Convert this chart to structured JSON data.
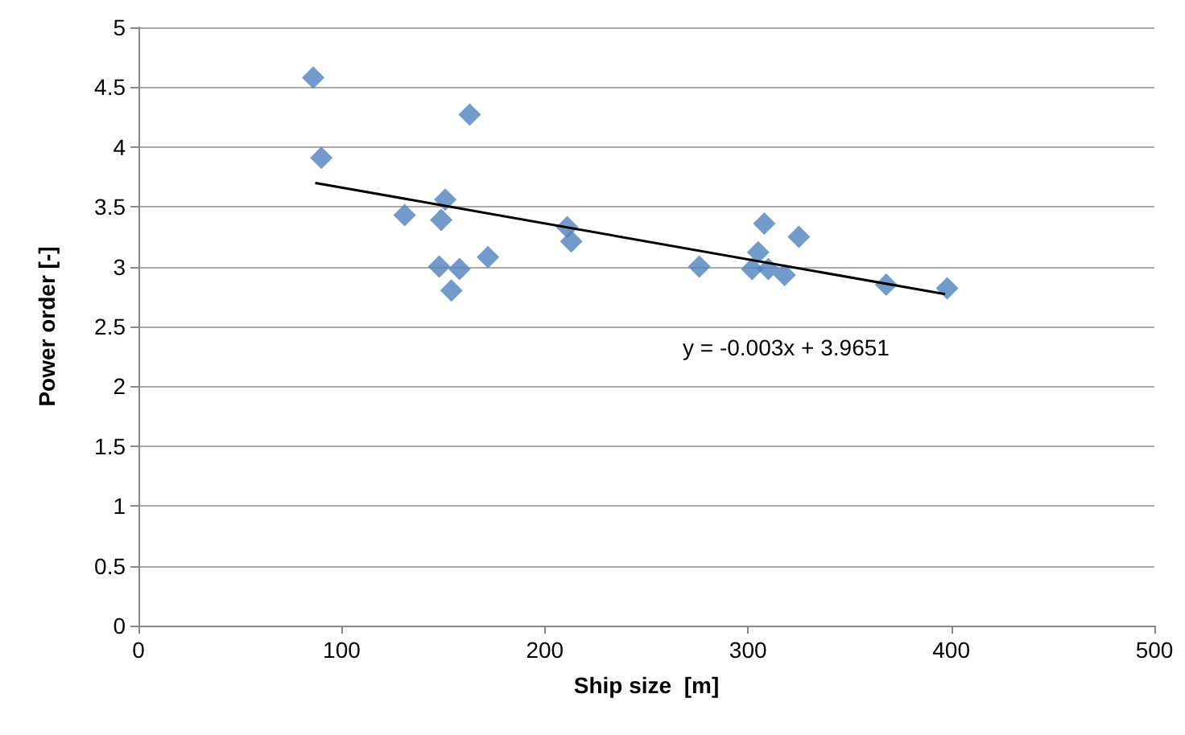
{
  "chart_data": {
    "type": "scatter",
    "xlabel": "Ship size  [m]",
    "ylabel": "Power order [-]",
    "xlim": [
      0,
      500
    ],
    "xticks": [
      0,
      100,
      200,
      300,
      400,
      500
    ],
    "ylim": [
      0,
      5
    ],
    "yticks": [
      0,
      0.5,
      1,
      1.5,
      2,
      2.5,
      3,
      3.5,
      4,
      4.5,
      5
    ],
    "grid": "y",
    "marker": "diamond",
    "series": [
      {
        "color": "#4f81bd",
        "x": [
          86,
          90,
          131,
          151,
          149,
          148,
          154,
          158,
          163,
          172,
          211,
          213,
          276,
          302,
          305,
          308,
          310,
          318,
          325,
          368,
          398
        ],
        "values": [
          4.58,
          3.91,
          3.43,
          3.56,
          3.39,
          3.0,
          2.8,
          2.98,
          4.27,
          3.08,
          3.33,
          3.21,
          3.0,
          2.98,
          3.12,
          3.36,
          2.98,
          2.93,
          3.25,
          2.85,
          2.82
        ]
      },
      {
        "type": "line",
        "color": "#000000",
        "marker": "none",
        "x": [
          87,
          397
        ],
        "values": [
          3.7,
          2.77
        ]
      }
    ],
    "annotations": [
      "y = -0.003x + 3.9651"
    ]
  }
}
